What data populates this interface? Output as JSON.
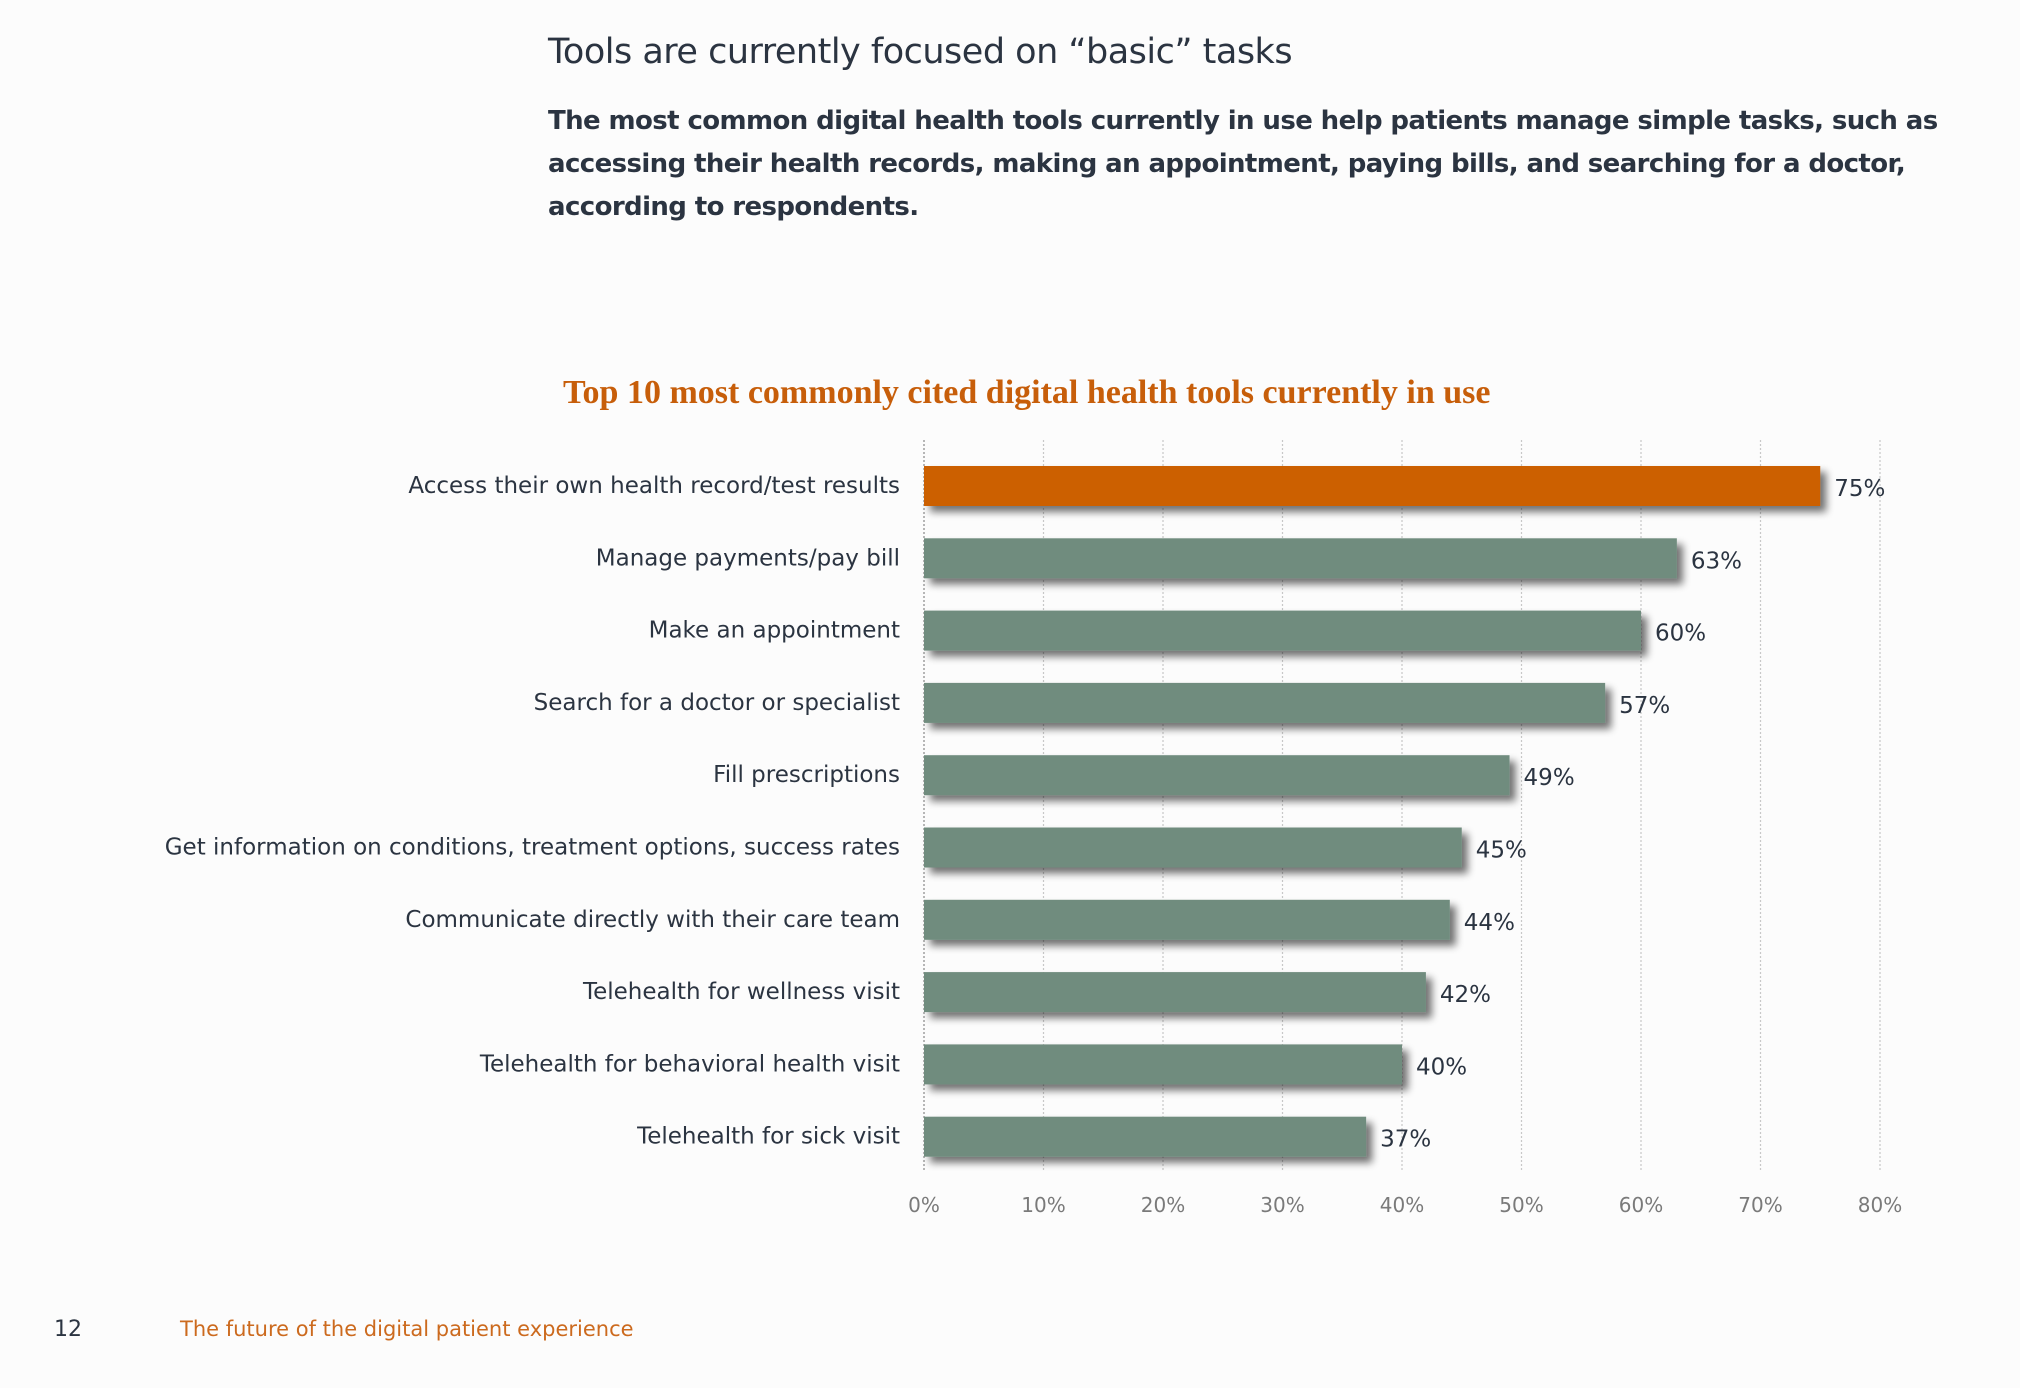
{
  "page": {
    "heading": "Tools are currently focused on “basic” tasks",
    "intro": "The most common digital health tools currently in use help patients manage simple tasks, such as accessing their health records, making an appointment, paying bills, and searching for a doctor, according to respondents.",
    "footer": {
      "page_number": "12",
      "title": "The future of the digital patient experience"
    }
  },
  "colors": {
    "highlight": "#cc6000",
    "bar": "#6f8c7e",
    "text": "#2b3441",
    "title": "#c75e0a"
  },
  "chart_data": {
    "type": "bar",
    "orientation": "horizontal",
    "title": "Top 10 most commonly cited digital health tools currently in use",
    "categories": [
      "Access their own health record/test results",
      "Manage payments/pay bill",
      "Make an appointment",
      "Search for a doctor or specialist",
      "Fill prescriptions",
      "Get information on conditions, treatment options, success rates",
      "Communicate directly with their care team",
      "Telehealth for wellness visit",
      "Telehealth for behavioral health visit",
      "Telehealth for sick visit"
    ],
    "values": [
      75,
      63,
      60,
      57,
      49,
      45,
      44,
      42,
      40,
      37
    ],
    "value_labels": [
      "75%",
      "63%",
      "60%",
      "57%",
      "49%",
      "45%",
      "44%",
      "42%",
      "40%",
      "37%"
    ],
    "highlight_index": 0,
    "xlim": [
      0,
      80
    ],
    "xticks": [
      0,
      10,
      20,
      30,
      40,
      50,
      60,
      70,
      80
    ],
    "xtick_labels": [
      "0%",
      "10%",
      "20%",
      "30%",
      "40%",
      "50%",
      "60%",
      "70%",
      "80%"
    ],
    "xlabel": "",
    "ylabel": "",
    "grid": true
  }
}
